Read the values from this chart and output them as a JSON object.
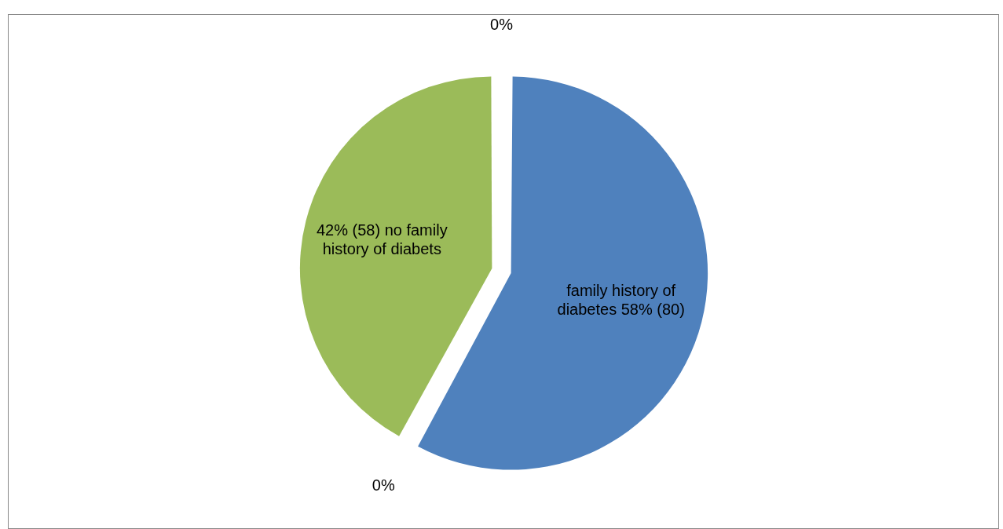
{
  "chart_data": {
    "type": "pie",
    "categories": [
      "family history of diabetes",
      null,
      "no family history of diabets",
      null
    ],
    "values": [
      80,
      0,
      58,
      0
    ],
    "colors": [
      "#4f81bd",
      "#c0504d",
      "#9bbb59",
      "#8064a2"
    ],
    "value_labels": [
      "58% (80)",
      "0%",
      "42% (58)",
      "0%"
    ]
  }
}
